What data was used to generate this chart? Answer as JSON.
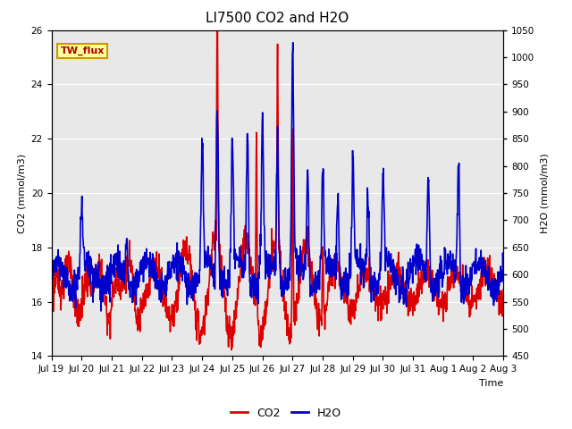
{
  "title": "LI7500 CO2 and H2O",
  "xlabel": "Time",
  "ylabel_left": "CO2 (mmol/m3)",
  "ylabel_right": "H2O (mmol/m3)",
  "ylim_left": [
    14,
    26
  ],
  "ylim_right": [
    450,
    1050
  ],
  "xtick_labels": [
    "Jul 19",
    "Jul 20",
    "Jul 21",
    "Jul 22",
    "Jul 23",
    "Jul 24",
    "Jul 25",
    "Jul 26",
    "Jul 27",
    "Jul 28",
    "Jul 29",
    "Jul 30",
    "Jul 31",
    "Aug 1",
    "Aug 2",
    "Aug 3"
  ],
  "legend_labels": [
    "CO2",
    "H2O"
  ],
  "co2_color": "#dd0000",
  "h2o_color": "#0000cc",
  "annotation_text": "TW_flux",
  "annotation_bg": "#ffff99",
  "annotation_border": "#cc9900",
  "plot_bg": "#e8e8e8",
  "grid_color": "white",
  "title_fontsize": 11,
  "axis_fontsize": 8,
  "tick_fontsize": 7.5,
  "legend_fontsize": 9,
  "line_width": 1.2,
  "n_points": 1500
}
